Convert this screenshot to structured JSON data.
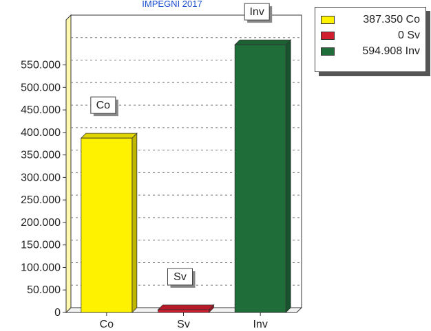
{
  "chart_data": {
    "type": "bar",
    "title": "IMPEGNI 2017",
    "categories": [
      "Co",
      "Sv",
      "Inv"
    ],
    "values": [
      387.35,
      0,
      594.908
    ],
    "colors": [
      "#fff200",
      "#d11e2e",
      "#1f6e3a"
    ],
    "bar_labels": [
      "Co",
      "Sv",
      "Inv"
    ],
    "ylim": [
      0,
      650
    ],
    "ytick_labels": [
      "0",
      "50.000",
      "100.000",
      "150.000",
      "200.000",
      "250.000",
      "300.000",
      "350.000",
      "400.000",
      "450.000",
      "500.000",
      "550.000"
    ],
    "xlabel": "",
    "ylabel": "",
    "grid": true,
    "legend": {
      "position": "top-right",
      "entries": [
        "387.350 Co",
        "0 Sv",
        "594.908 Inv"
      ]
    }
  }
}
